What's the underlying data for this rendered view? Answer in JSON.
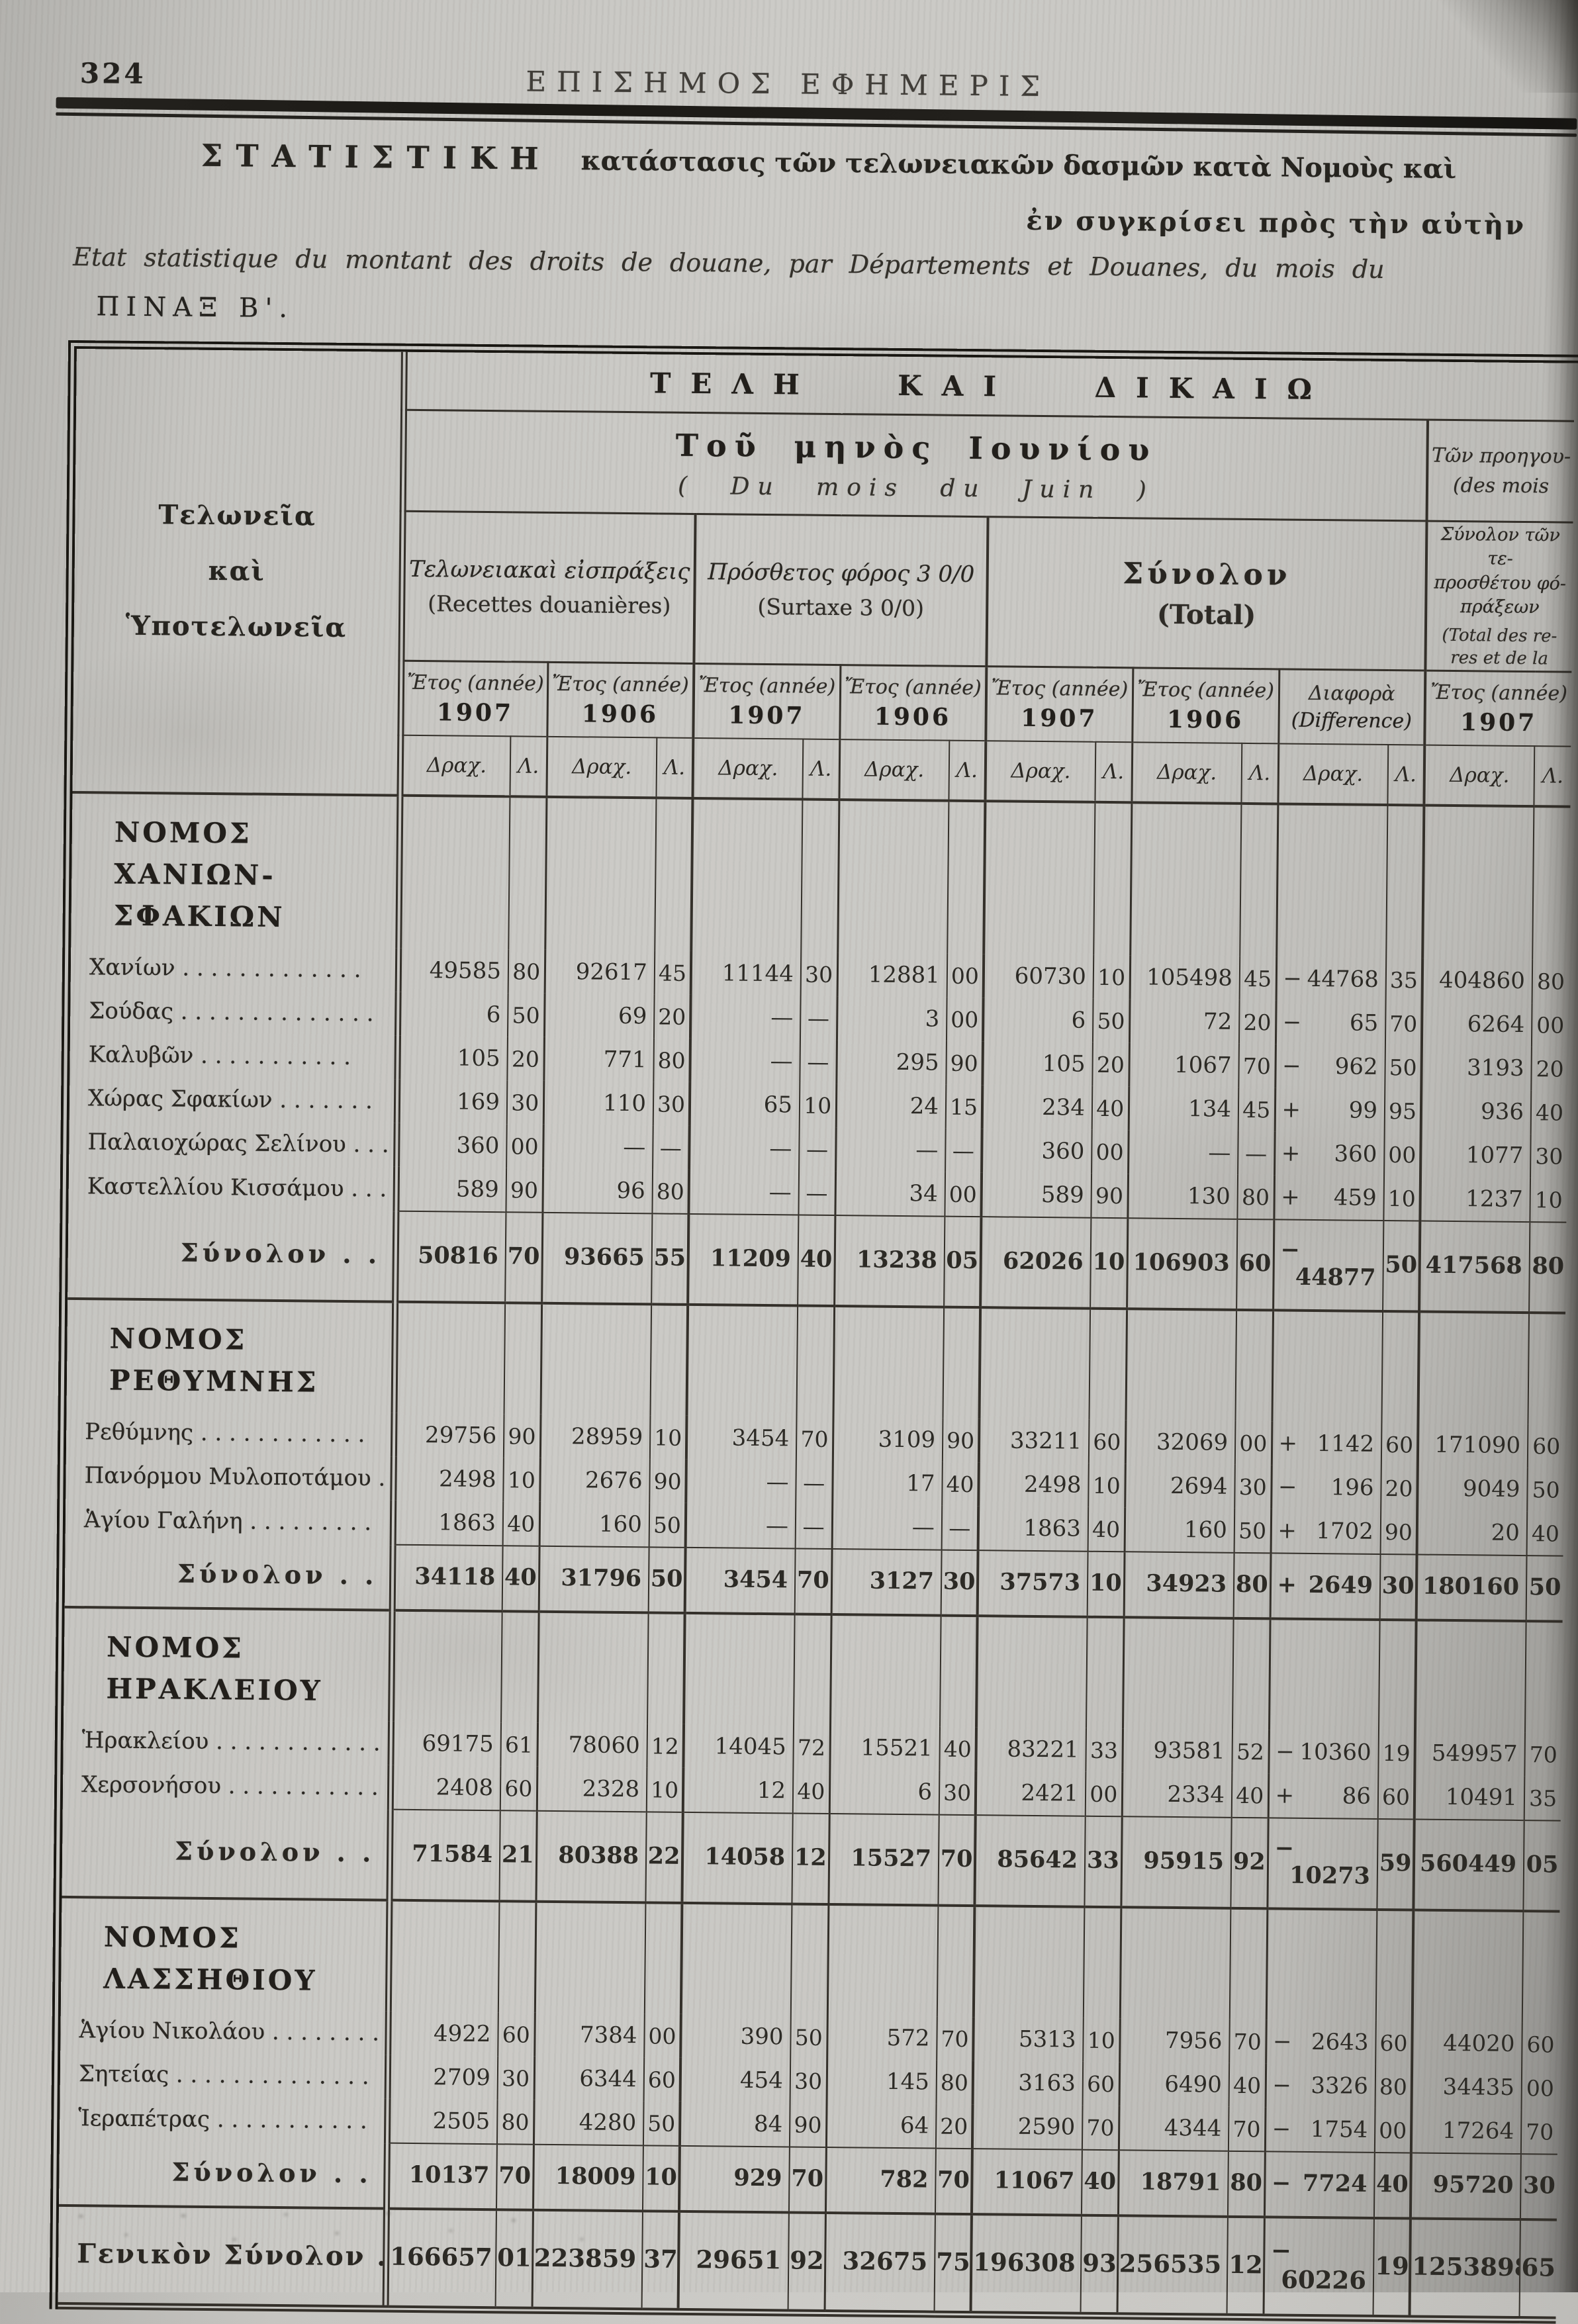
{
  "colors": {
    "paper": "#c6c5c1",
    "ink": "#2c2a25"
  },
  "page": {
    "number": "324",
    "masthead": "ΕΠΙΣΗΜΟΣ ΕΦΗΜΕΡΙΣ",
    "title_gr_lead": "ΣΤΑΤΙΣΤΙΚΗ",
    "title_gr_rest": "κατάστασις τῶν τελωνειακῶν δασμῶν κατὰ Νομοὺς καὶ",
    "title_gr_line2": "ἐν συγκρίσει πρὸς τὴν αὐτὴν",
    "title_fr": "Etat statistique du montant des droits de douane, par Départements et Douanes, du mois du",
    "table_label": "ΠΙΝΑΞ Β'."
  },
  "table": {
    "header": {
      "banner": "ΤΕΛΗ ΚΑΙ ΔΙΚΑΙΩ",
      "month_gr": "Τοῦ μηνὸς Ιουνίου",
      "month_fr": "( Du  mois  du  Juin )",
      "prev": "Τῶν προηγου-\n(des mois",
      "stub": "Τελωνεῖα\nκαὶ\nὙποτελωνεῖα",
      "groups": [
        {
          "gr": "Τελωνειακαὶ εἰσπράξεις",
          "fr": "(Recettes douanières)"
        },
        {
          "gr": "Πρόσθετος φόρος 3 0/0",
          "fr": "(Surtaxe 3 0/0)"
        },
        {
          "gr": "Σύνολον",
          "fr": "(Total)"
        },
        {
          "gr": "Σύνολον τῶν τε-\nπροσθέτου φό-\nπράξεων",
          "fr": "(Total des re-\nres et de la"
        }
      ],
      "year_cells": [
        {
          "label": "Ἔτος (année)",
          "year": "1907"
        },
        {
          "label": "Ἔτος (année)",
          "year": "1906"
        },
        {
          "label": "Ἔτος (année)",
          "year": "1907"
        },
        {
          "label": "Ἔτος (année)",
          "year": "1906"
        },
        {
          "label": "Ἔτος (année)",
          "year": "1907"
        },
        {
          "label": "Ἔτος (année)",
          "year": "1906"
        },
        {
          "label": "Διαφορὰ",
          "year": "(Difference)",
          "diff": true
        },
        {
          "label": "Ἔτος (année)",
          "year": "1907"
        }
      ],
      "currency_drachmas": "Δραχ.",
      "currency_lepta": "Λ."
    },
    "sections": [
      {
        "heading": "ΝΟΜΟΣ\nΧΑΝΙΩΝ-ΣΦΑΚΙΩΝ",
        "rows": [
          {
            "label": "Χανίων . . . . . . . . . . . . .",
            "values": [
              "49585|80",
              "92617|45",
              "11144|30",
              "12881|00",
              "60730|10",
              "105498|45",
              "−44768|35",
              "404860|80"
            ]
          },
          {
            "label": "Σούδας . . . . . . . . . . . . . .",
            "values": [
              "6|50",
              "69|20",
              "—|—",
              "3|00",
              "6|50",
              "72|20",
              "−65|70",
              "6264|00"
            ]
          },
          {
            "label": "Καλυβῶν . . . . . . . . . . .",
            "values": [
              "105|20",
              "771|80",
              "—|—",
              "295|90",
              "105|20",
              "1067|70",
              "−962|50",
              "3193|20"
            ]
          },
          {
            "label": "Χώρας Σφακίων . . . . . . .",
            "values": [
              "169|30",
              "110|30",
              "65|10",
              "24|15",
              "234|40",
              "134|45",
              "+99|95",
              "936|40"
            ]
          },
          {
            "label": "Παλαιοχώρας Σελίνου . . . .",
            "values": [
              "360|00",
              "—|—",
              "—|—",
              "—|—",
              "360|00",
              "—|—",
              "+360|00",
              "1077|30"
            ]
          },
          {
            "label": "Καστελλίου Κισσάμου . . . .",
            "values": [
              "589|90",
              "96|80",
              "—|—",
              "34|00",
              "589|90",
              "130|80",
              "+459|10",
              "1237|10"
            ]
          }
        ],
        "total": {
          "label": "Σύνολον . . . .",
          "values": [
            "50816|70",
            "93665|55",
            "11209|40",
            "13238|05",
            "62026|10",
            "106903|60",
            "−44877|50",
            "417568|80"
          ]
        }
      },
      {
        "heading": "ΝΟΜΟΣ ΡΕΘΥΜΝΗΣ",
        "rows": [
          {
            "label": "Ρεθύμνης . . . . . . . . . . . .",
            "values": [
              "29756|90",
              "28959|10",
              "3454|70",
              "3109|90",
              "33211|60",
              "32069|00",
              "+1142|60",
              "171090|60"
            ]
          },
          {
            "label": "Πανόρμου Μυλοποτάμου . .",
            "values": [
              "2498|10",
              "2676|90",
              "—|—",
              "17|40",
              "2498|10",
              "2694|30",
              "−196|20",
              "9049|50"
            ]
          },
          {
            "label": "Ἁγίου Γαλήνη . . . . . . . . .",
            "values": [
              "1863|40",
              "160|50",
              "—|—",
              "—|—",
              "1863|40",
              "160|50",
              "+1702|90",
              "20|40"
            ]
          }
        ],
        "total": {
          "label": "Σύνολον . . . .",
          "values": [
            "34118|40",
            "31796|50",
            "3454|70",
            "3127|30",
            "37573|10",
            "34923|80",
            "+2649|30",
            "180160|50"
          ]
        }
      },
      {
        "heading": "ΝΟΜΟΣ ΗΡΑΚΛΕΙΟΥ",
        "rows": [
          {
            "label": "Ἡρακλείου . . . . . . . . . . . .",
            "values": [
              "69175|61",
              "78060|12",
              "14045|72",
              "15521|40",
              "83221|33",
              "93581|52",
              "−10360|19",
              "549957|70"
            ]
          },
          {
            "label": "Χερσονήσου . . . . . . . . . . .",
            "values": [
              "2408|60",
              "2328|10",
              "12|40",
              "6|30",
              "2421|00",
              "2334|40",
              "+86|60",
              "10491|35"
            ]
          }
        ],
        "total": {
          "label": "Σύνολον . . .",
          "values": [
            "71584|21",
            "80388|22",
            "14058|12",
            "15527|70",
            "85642|33",
            "95915|92",
            "−10273|59",
            "560449|05"
          ]
        }
      },
      {
        "heading": "ΝΟΜΟΣ ΛΑΣΣΗΘΙΟΥ",
        "rows": [
          {
            "label": "Ἁγίου Νικολάου . . . . . . . .",
            "values": [
              "4922|60",
              "7384|00",
              "390|50",
              "572|70",
              "5313|10",
              "7956|70",
              "−2643|60",
              "44020|60"
            ]
          },
          {
            "label": "Σητείας . . . . . . . . . . . . . .",
            "values": [
              "2709|30",
              "6344|60",
              "454|30",
              "145|80",
              "3163|60",
              "6490|40",
              "−3326|80",
              "34435|00"
            ]
          },
          {
            "label": "Ἱεραπέτρας . . . . . . . . . . .",
            "values": [
              "2505|80",
              "4280|50",
              "84|90",
              "64|20",
              "2590|70",
              "4344|70",
              "−1754|00",
              "17264|70"
            ]
          }
        ],
        "total": {
          "label": "Σύνολον . . . .",
          "values": [
            "10137|70",
            "18009|10",
            "929|70",
            "782|70",
            "11067|40",
            "18791|80",
            "−7724|40",
            "95720|30"
          ]
        }
      }
    ],
    "grand_total": {
      "label": "Γενικὸν Σύνολον . . .",
      "values": [
        "166657|01",
        "223859|37",
        "29651|92",
        "32675|75",
        "196308|93",
        "256535|12",
        "−60226|19",
        "1253898|65"
      ]
    }
  }
}
